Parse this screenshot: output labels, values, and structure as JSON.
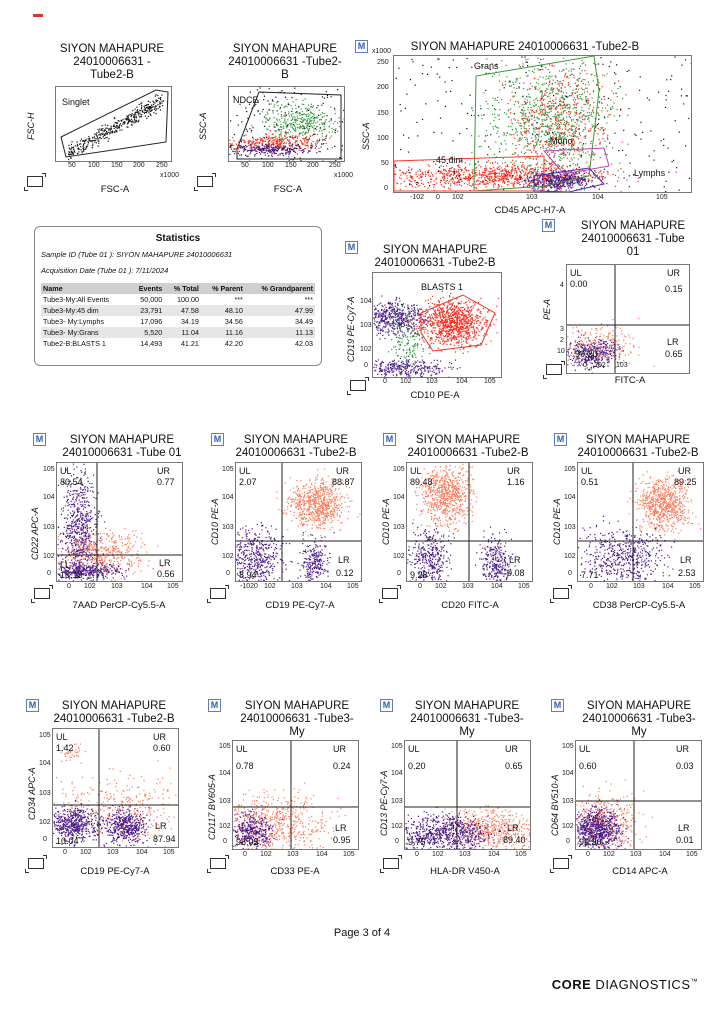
{
  "header": {
    "mark": "red-line"
  },
  "panels": {
    "p1": {
      "badge": "",
      "title": "SIYON MAHAPURE\n24010006631 -\nTube2-B",
      "ylabel": "FSC-H",
      "xlabel": "FSC-A",
      "gate": "Singlet",
      "xticks": [
        "50",
        "100",
        "150",
        "200",
        "250"
      ],
      "xunit": "x1000",
      "yticks": []
    },
    "p2": {
      "badge": "",
      "title": "SIYON MAHAPURE\n24010006631 -Tube2-\nB",
      "ylabel": "SSC-A",
      "xlabel": "FSC-A",
      "gate": "NDCE",
      "xticks": [
        "50",
        "100",
        "150",
        "200",
        "250"
      ],
      "xunit": "x1000"
    },
    "p3": {
      "badge": "M",
      "title": "SIYON MAHAPURE 24010006631 -Tube2-B",
      "ylabel": "SSC-A",
      "xlabel": "CD45 APC-H7-A",
      "yunit": "x1000",
      "yticks": [
        "250",
        "200",
        "150",
        "100",
        "50",
        "0"
      ],
      "xticks": [
        "-102",
        "0",
        "102",
        "103",
        "104",
        "105"
      ],
      "gates": {
        "grans": "Grans",
        "mono": "Mono",
        "dim": "45 dim",
        "lymphs": "Lymphs"
      }
    },
    "p4": {
      "badge": "M",
      "title": "SIYON MAHAPURE\n24010006631 -Tube2-B",
      "ylabel": "CD19 PE-Cy7-A",
      "xlabel": "CD10 PE-A",
      "gate": "BLASTS 1",
      "yticks": [
        "104",
        "103",
        "102",
        "0"
      ],
      "xticks": [
        "0",
        "102",
        "103",
        "104",
        "105"
      ]
    },
    "p5": {
      "badge": "M",
      "title": "SIYON MAHAPURE\n24010006631 -Tube\n01",
      "ylabel": "PE-A",
      "xlabel": "FITC-A",
      "ul": "UL",
      "ulv": "0.00",
      "ur": "UR",
      "urv": "0.15",
      "lr": "LR",
      "lrv": "0.65",
      "llv": "99.20",
      "yticks": [
        "4",
        "3",
        "2",
        "10"
      ],
      "xticks": [
        "0",
        "102",
        "103"
      ]
    },
    "p6": {
      "badge": "M",
      "title": "SIYON MAHAPURE\n24010006631 -Tube 01",
      "ylabel": "CD22 APC-A",
      "xlabel": "7AAD PerCP-Cy5.5-A",
      "ul": "UL",
      "ulv": "80.54",
      "ur": "UR",
      "urv": "0.77",
      "ll": "LL",
      "llv": "18.13",
      "lr": "LR",
      "lrv": "0.56",
      "yticks": [
        "105",
        "104",
        "103",
        "102",
        "0"
      ],
      "xticks": [
        "0",
        "102",
        "103",
        "104",
        "105"
      ]
    },
    "p7": {
      "badge": "M",
      "title": "SIYON MAHAPURE\n24010006631 -Tube2-B",
      "ylabel": "CD10 PE-A",
      "xlabel": "CD19 PE-Cy7-A",
      "ul": "UL",
      "ulv": "2.07",
      "ur": "UR",
      "urv": "88.87",
      "llv": "8.94",
      "lr": "LR",
      "lrv": "0.12",
      "yticks": [
        "105",
        "104",
        "103",
        "102",
        "0"
      ],
      "xticks": [
        "-1020",
        "102",
        "103",
        "104",
        "105"
      ]
    },
    "p8": {
      "badge": "M",
      "title": "SIYON MAHAPURE\n24010006631 -Tube2-B",
      "ylabel": "CD10 PE-A",
      "xlabel": "CD20 FITC-A",
      "ul": "UL",
      "ulv": "89.48",
      "ur": "UR",
      "urv": "1.16",
      "llv": "9.28",
      "lr": "LR",
      "lrv": "0.08",
      "yticks": [
        "105",
        "104",
        "103",
        "102",
        "0"
      ],
      "xticks": [
        "0",
        "102",
        "103",
        "104",
        "105"
      ]
    },
    "p9": {
      "badge": "M",
      "title": "SIYON MAHAPURE\n24010006631 -Tube2-B",
      "ylabel": "CD10 PE-A",
      "xlabel": "CD38 PerCP-Cy5.5-A",
      "ul": "UL",
      "ulv": "0.51",
      "ur": "UR",
      "urv": "89.25",
      "llv": "7.71",
      "lr": "LR",
      "lrv": "2.53",
      "yticks": [
        "105",
        "104",
        "103",
        "102",
        "0"
      ],
      "xticks": [
        "0",
        "102",
        "103",
        "104",
        "105"
      ]
    },
    "p10": {
      "badge": "M",
      "title": "SIYON MAHAPURE\n24010006631 -Tube2-B",
      "ylabel": "CD34 APC-A",
      "xlabel": "CD19 PE-Cy7-A",
      "ul": "UL",
      "ulv": "1.42",
      "ur": "UR",
      "urv": "0.60",
      "llv": "10.04",
      "lr": "LR",
      "lrv": "87.94",
      "yticks": [
        "105",
        "104",
        "103",
        "102",
        "0"
      ],
      "xticks": [
        "0",
        "102",
        "103",
        "104",
        "105"
      ]
    },
    "p11": {
      "badge": "M",
      "title": "SIYON MAHAPURE\n24010006631 -Tube3-\nMy",
      "ylabel": "CD117 BV605-A",
      "xlabel": "CD33 PE-A",
      "ul": "UL",
      "ulv": "0.78",
      "ur": "UR",
      "urv": "0.24",
      "llv": "98.03",
      "lr": "LR",
      "lrv": "0.95",
      "yticks": [
        "105",
        "104",
        "103",
        "102",
        "0"
      ],
      "xticks": [
        "0",
        "102",
        "103",
        "104",
        "105"
      ]
    },
    "p12": {
      "badge": "M",
      "title": "SIYON MAHAPURE\n24010006631 -Tube3-\nMy",
      "ylabel": "CD13 PE-Cy7-A",
      "xlabel": "HLA-DR V450-A",
      "ul": "UL",
      "ulv": "0.20",
      "ur": "UR",
      "urv": "0.65",
      "llv": "9.75",
      "lr": "LR",
      "lrv": "89.40",
      "yticks": [
        "105",
        "104",
        "103",
        "102",
        "0"
      ],
      "xticks": [
        "0",
        "102",
        "103",
        "104",
        "105"
      ]
    },
    "p13": {
      "badge": "M",
      "title": "SIYON MAHAPURE\n24010006631 -Tube3-\nMy",
      "ylabel": "CD64 BV510-A",
      "xlabel": "CD14 APC-A",
      "ul": "UL",
      "ulv": "0.60",
      "ur": "UR",
      "urv": "0.03",
      "llv": "99.36",
      "lr": "LR",
      "lrv": "0.01",
      "yticks": [
        "105",
        "104",
        "103",
        "102",
        "0"
      ],
      "xticks": [
        "0",
        "102",
        "103",
        "104",
        "105"
      ]
    }
  },
  "statistics": {
    "title": "Statistics",
    "sample_id": "Sample ID (Tube 01 ): SIYON MAHAPURE 24010006631",
    "acq_date": "Acquisition Date (Tube 01 ): 7/11/2024",
    "headers": [
      "Name",
      "Events",
      "% Total",
      "% Parent",
      "% Grandparent"
    ],
    "rows": [
      [
        "Tube3-My:All Events",
        "50,000",
        "100.00",
        "***",
        "***"
      ],
      [
        "Tube3-My:45 dim",
        "23,791",
        "47.58",
        "48.10",
        "47.99"
      ],
      [
        "Tube3- My:Lymphs",
        "17,096",
        "34.19",
        "34.56",
        "34.49"
      ],
      [
        "Tube3- My:Grans",
        "5,520",
        "11.04",
        "11.16",
        "11.13"
      ],
      [
        "Tube2-B:BLASTS 1",
        "14,493",
        "41.21",
        "42.20",
        "42.03"
      ]
    ]
  },
  "footer": {
    "page": "Page 3 of 4",
    "logo_bold": "CORE",
    "logo_rest": " DIAGNOSTICS",
    "tm": "™"
  },
  "colors": {
    "red": "#ff2a1a",
    "salmon": "#ff7a5a",
    "purple": "#4b1a8a",
    "green": "#2e9a3a",
    "black": "#111111"
  }
}
